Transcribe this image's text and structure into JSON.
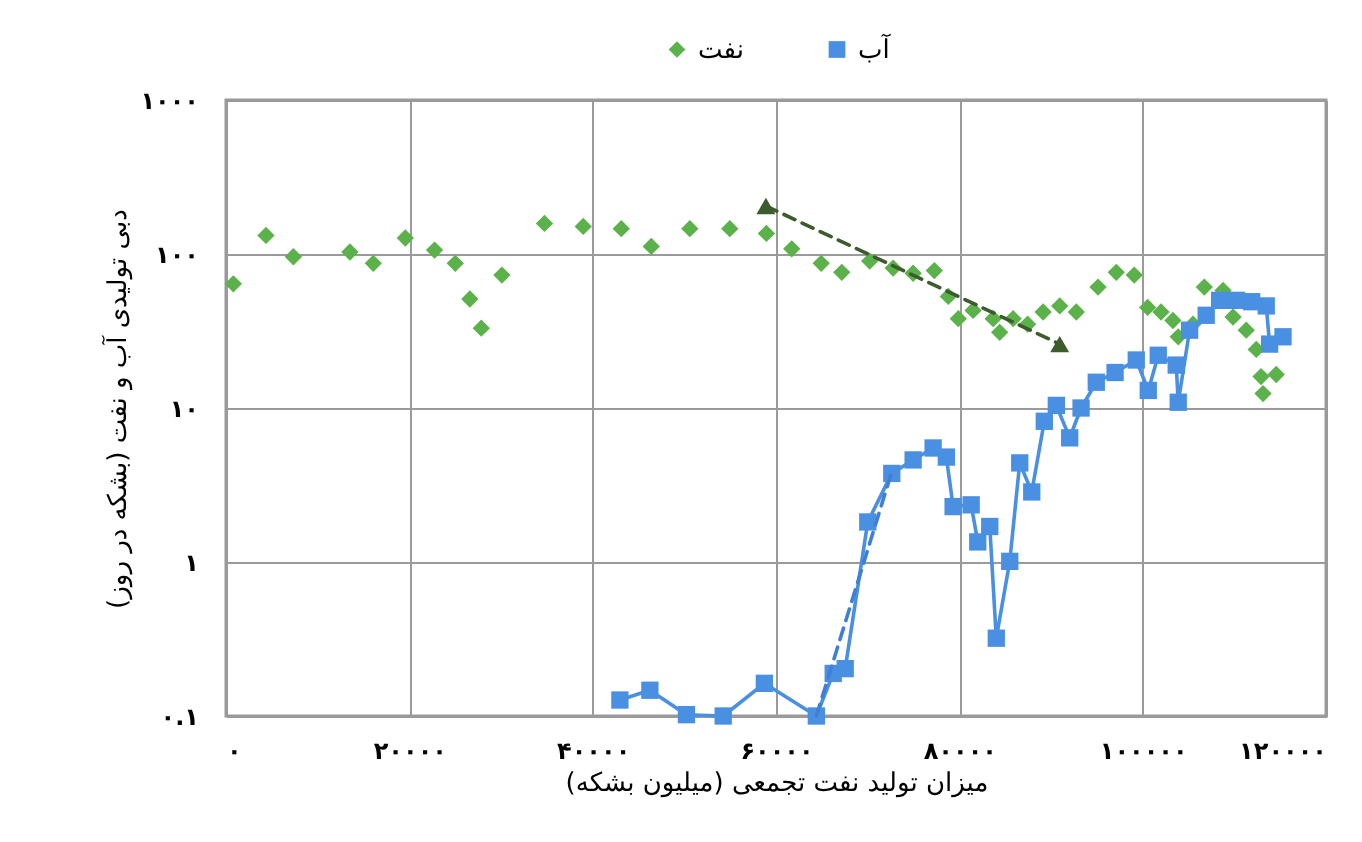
{
  "chart_data": {
    "type": "scatter",
    "xlabel": "میزان تولید نفت تجمعی (میلیون بشکه)",
    "ylabel": "دبی تولیدی آب و نفت (بشکه در روز)",
    "log": true,
    "grid": true,
    "legend": "top",
    "xlim": [
      0,
      120000
    ],
    "xticks": [
      {
        "value": 0,
        "label": "۰"
      },
      {
        "value": 20000,
        "label": "۲۰۰۰۰"
      },
      {
        "value": 40000,
        "label": "۴۰۰۰۰"
      },
      {
        "value": 60000,
        "label": "۶۰۰۰۰"
      },
      {
        "value": 80000,
        "label": "۸۰۰۰۰"
      },
      {
        "value": 100000,
        "label": "۱۰۰۰۰۰"
      },
      {
        "value": 120000,
        "label": "۱۲۰۰۰۰"
      }
    ],
    "ylim": [
      0.1,
      1000
    ],
    "yticks": [
      {
        "value": 0.1,
        "label": "۰.۱"
      },
      {
        "value": 1,
        "label": "۱"
      },
      {
        "value": 10,
        "label": "۱۰"
      },
      {
        "value": 100,
        "label": "۱۰۰"
      },
      {
        "value": 1000,
        "label": "۱۰۰۰"
      }
    ],
    "series": [
      {
        "name": "نفت",
        "marker": "diamond",
        "color": "#5cb24a",
        "x": [
          800,
          4360,
          7350,
          13520,
          16070,
          19560,
          22750,
          25010,
          26600,
          27850,
          30100,
          34740,
          38970,
          43120,
          46390,
          50600,
          54960,
          58950,
          61720,
          64930,
          67170,
          70220,
          72780,
          74960,
          77270,
          78800,
          79890,
          81500,
          83690,
          84400,
          85870,
          87450,
          89140,
          90950,
          92760,
          95130,
          97120,
          99080,
          100540,
          102000,
          103300,
          103880,
          105490,
          106720,
          108770,
          109860,
          111300,
          112390,
          112910,
          114570,
          113130
        ],
        "values": [
          64,
          132,
          96,
          103,
          87,
          127,
          106,
          87,
          51,
          33,
          73,
          158,
          151,
          146,
          112,
          146,
          146,
          136,
          108,
          87,
          76,
          90,
          81,
          75,
          78,
          53,
          38,
          43,
          38,
          31,
          38,
          35,
          42,
          46,
          42,
          61,
          76,
          73,
          45,
          42,
          37,
          29,
          35,
          61,
          58,
          39,
          32,
          24,
          16,
          16.5,
          12.4
        ]
      },
      {
        "name": "آب",
        "type": "line",
        "marker": "square",
        "color": "#4a90e2",
        "x": [
          42970,
          46240,
          50230,
          54240,
          58730,
          64400,
          66240,
          67550,
          70010,
          72630,
          74960,
          77140,
          78580,
          79320,
          81290,
          82010,
          83320,
          84030,
          85500,
          86590,
          87900,
          89270,
          90580,
          92040,
          93280,
          94940,
          96990,
          99300,
          100610,
          101700,
          103660,
          103880,
          105120,
          106930,
          108400,
          110210,
          111890,
          113480,
          113850,
          115310
        ],
        "values": [
          0.127,
          0.147,
          0.102,
          0.1,
          0.163,
          0.1,
          0.189,
          0.203,
          1.82,
          3.76,
          4.6,
          5.5,
          4.8,
          2.29,
          2.35,
          1.35,
          1.7,
          0.32,
          1.01,
          4.4,
          2.85,
          8.2,
          10.4,
          6.4,
          10,
          14.7,
          17,
          20.5,
          13,
          22,
          19,
          10.9,
          32,
          40,
          50,
          50,
          49,
          46,
          26,
          29
        ]
      },
      {
        "type": "line",
        "line_style": "dashed",
        "marker": "none",
        "color": "#3f7fd6",
        "x": [
          64400,
          72600
        ],
        "values": [
          0.1,
          3.8
        ]
      },
      {
        "type": "line",
        "line_style": "dashed",
        "marker": "triangle",
        "color": "#3d5c2e",
        "x": [
          58900,
          90950
        ],
        "values": [
          205,
          26
        ]
      }
    ]
  }
}
